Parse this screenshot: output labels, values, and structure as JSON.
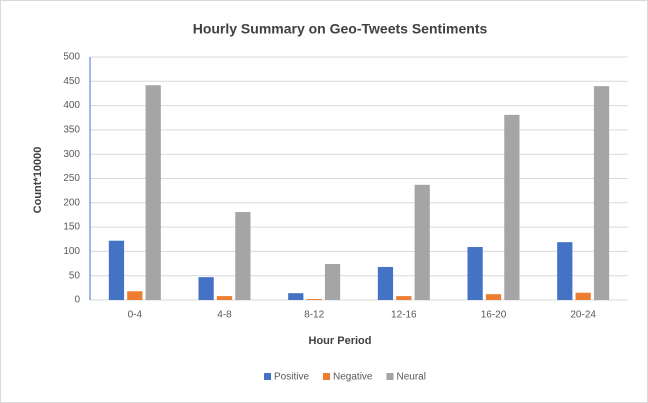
{
  "chart_data": {
    "type": "bar",
    "title": "Hourly Summary on Geo-Tweets Sentiments",
    "x_label": "Hour Period",
    "y_label": "Count*10000",
    "categories": [
      "0-4",
      "4-8",
      "8-12",
      "12-16",
      "16-20",
      "20-24"
    ],
    "series": [
      {
        "name": "Positive",
        "color": "#4472c4",
        "values": [
          122,
          47,
          14,
          68,
          109,
          119
        ]
      },
      {
        "name": "Negative",
        "color": "#ed7d31",
        "values": [
          18,
          8,
          2,
          8,
          12,
          15
        ]
      },
      {
        "name": "Neural",
        "color": "#a5a5a5",
        "values": [
          442,
          181,
          74,
          237,
          381,
          440
        ]
      }
    ],
    "ylim": [
      0,
      500
    ],
    "yticks": [
      0,
      50,
      100,
      150,
      200,
      250,
      300,
      350,
      400,
      450,
      500
    ],
    "grid": true,
    "legend": "bottom"
  }
}
